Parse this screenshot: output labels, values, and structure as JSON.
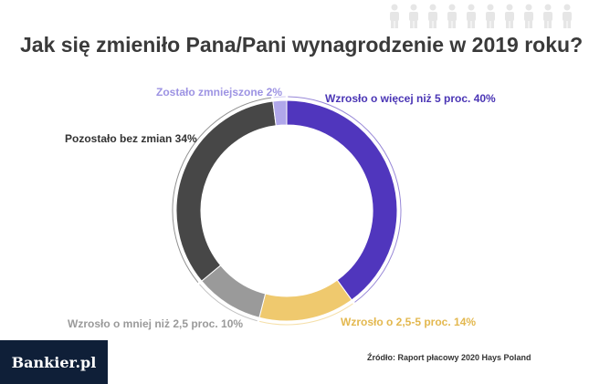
{
  "brand": "Bankier.pl",
  "source": "Źródło: Raport płacowy 2020 Hays Poland",
  "decor_icon": "person-icon",
  "chart_data": {
    "type": "pie",
    "style": "donut",
    "title": "Jak się zmieniło Pana/Pani wynagrodzenie w 2019 roku?",
    "slices": [
      {
        "label": "Wzrosło o więcej niż 5 proc.",
        "value": 40,
        "text": "Wzrosło o więcej niż 5 proc. 40%",
        "color": "#5036bd",
        "label_color": "#4a35b5"
      },
      {
        "label": "Wzrosło o 2,5-5 proc.",
        "value": 14,
        "text": "Wzrosło o 2,5-5 proc. 14%",
        "color": "#efc96e",
        "label_color": "#e3b84f"
      },
      {
        "label": "Wzrosło o mniej niż 2,5 proc.",
        "value": 10,
        "text": "Wzrosło o mniej niż 2,5 proc. 10%",
        "color": "#9a9a9a",
        "label_color": "#9a9a9a"
      },
      {
        "label": "Pozostało bez zmian",
        "value": 34,
        "text": "Pozostało bez zmian 34%",
        "color": "#474747",
        "label_color": "#333333"
      },
      {
        "label": "Zostało zmniejszone",
        "value": 2,
        "text": "Zostało zmniejszone 2%",
        "color": "#b0a7ea",
        "label_color": "#9d93e3"
      }
    ]
  }
}
